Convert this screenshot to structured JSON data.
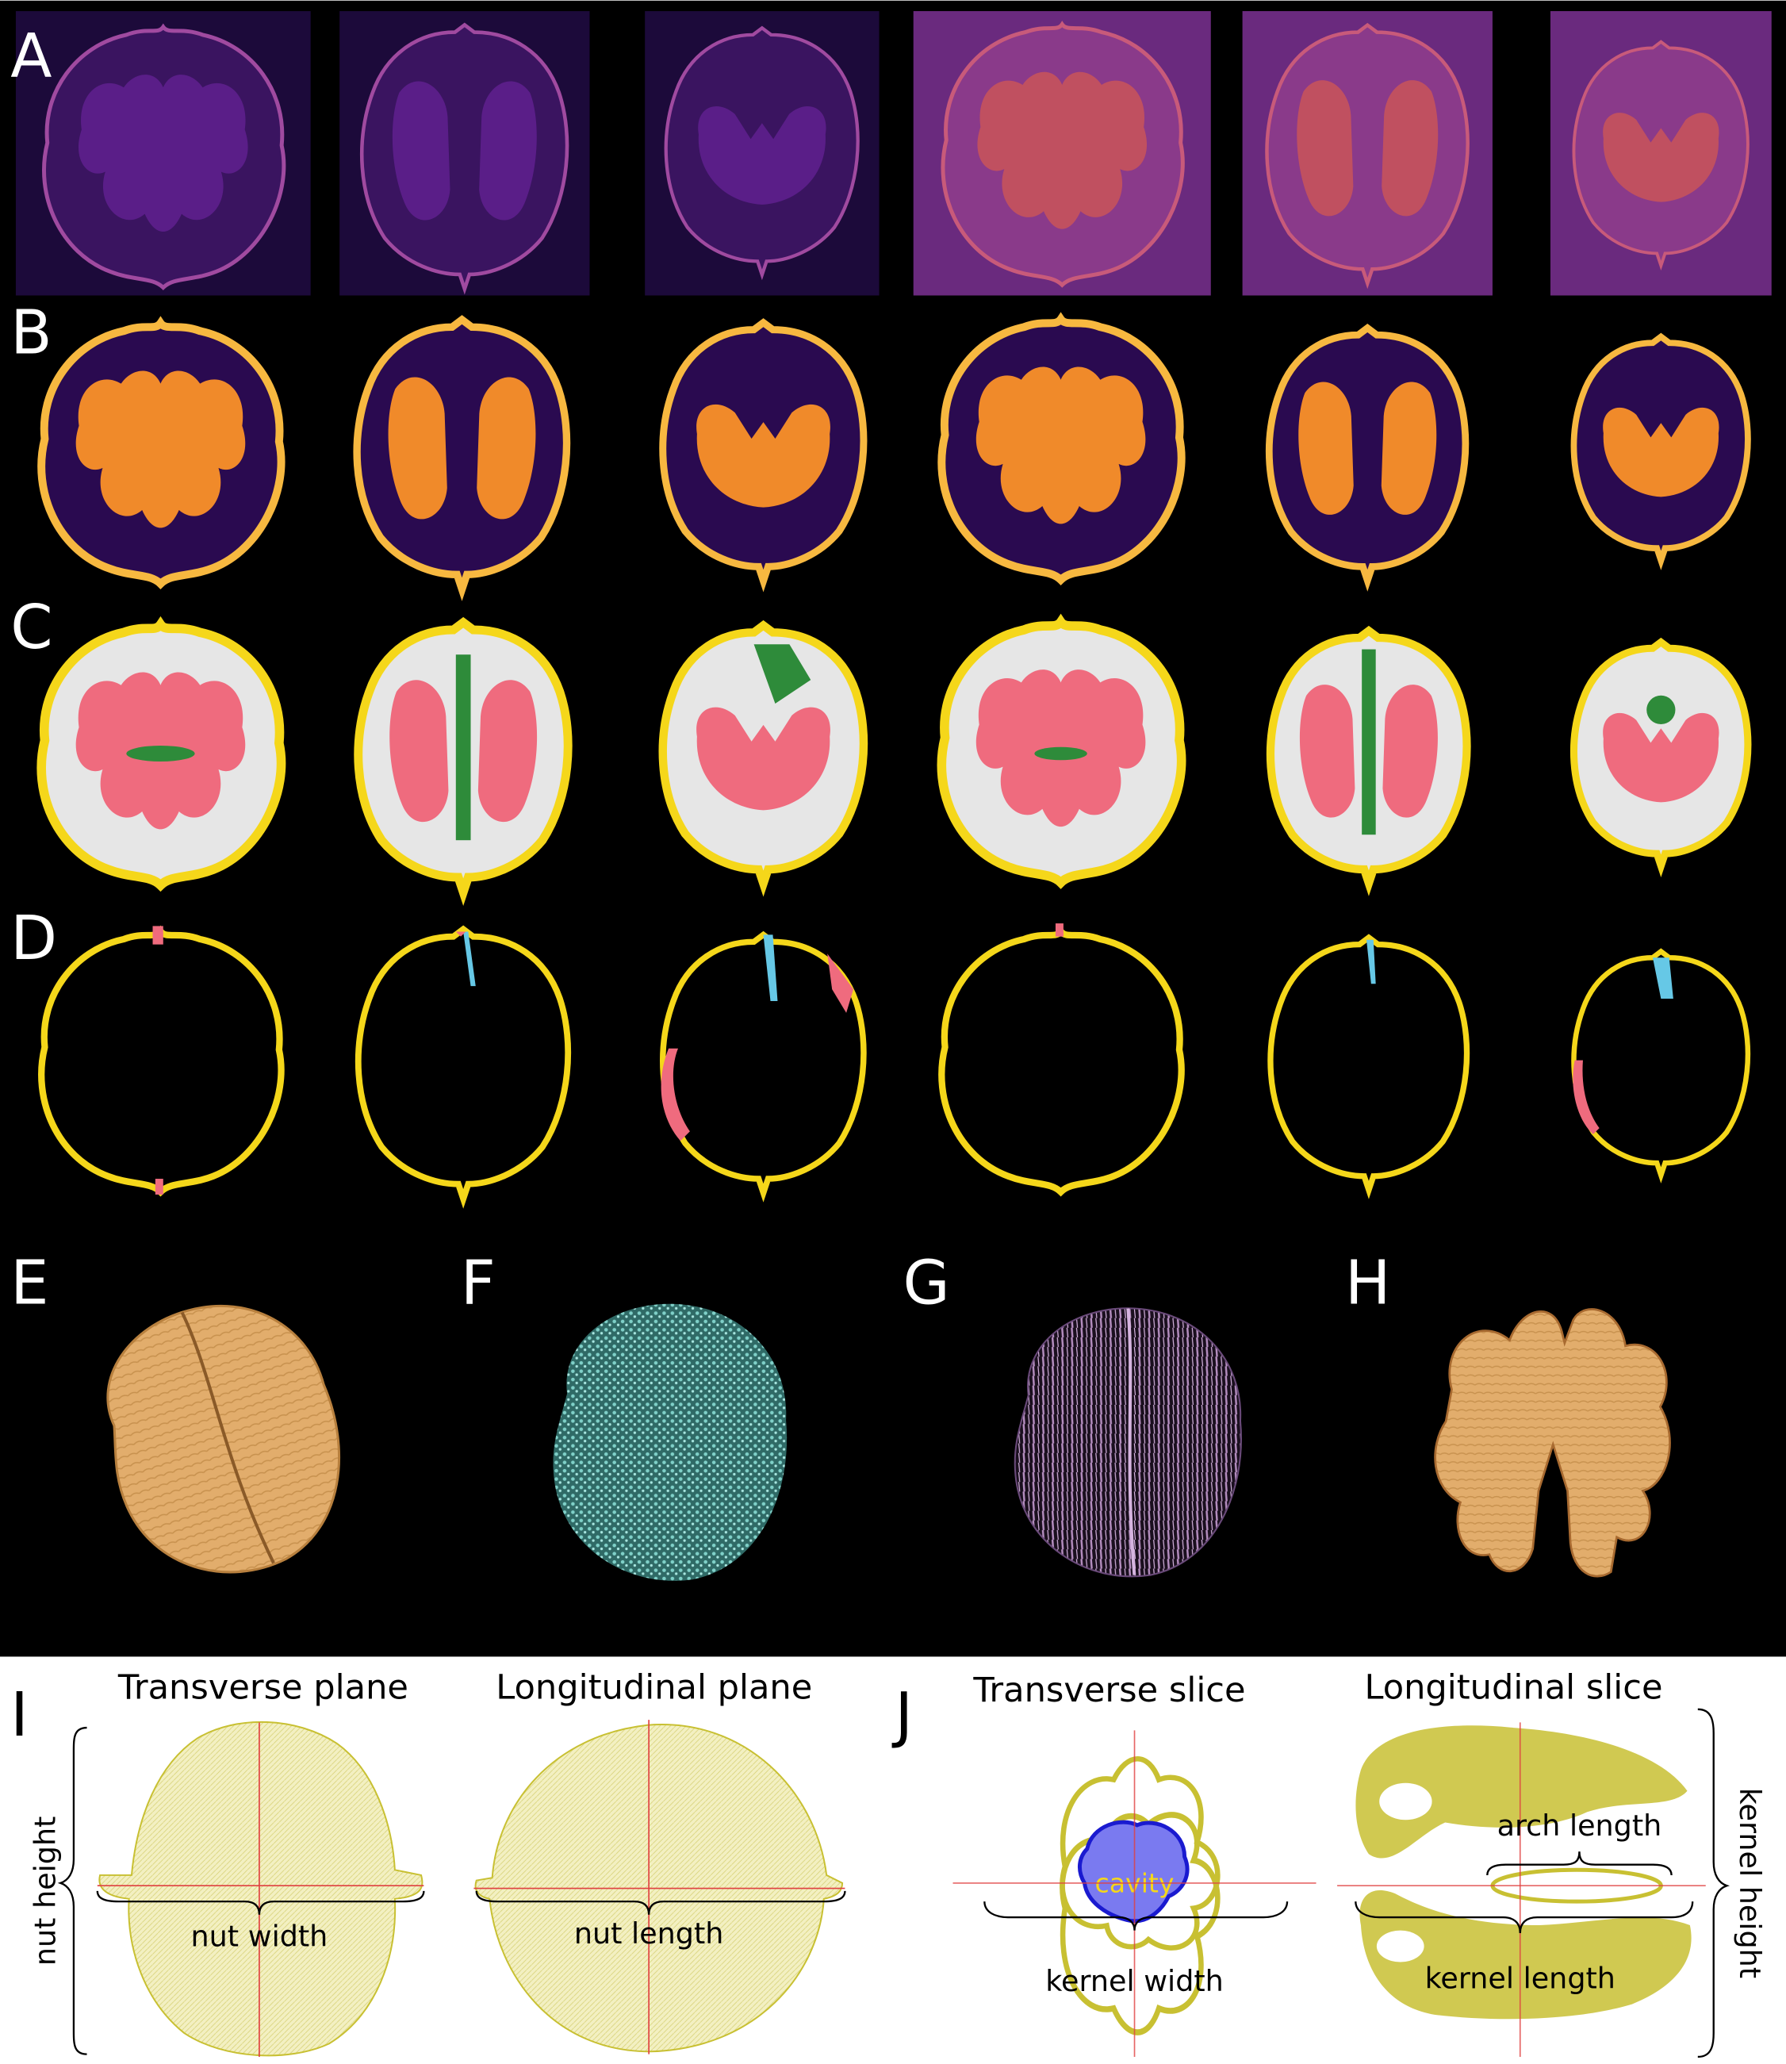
{
  "panels": {
    "A": "A",
    "B": "B",
    "C": "C",
    "D": "D",
    "E": "E",
    "F": "F",
    "G": "G",
    "H": "H",
    "I": "I",
    "J": "J"
  },
  "panel_I": {
    "transverse_title": "Transverse plane",
    "longitudinal_title": "Longitudinal plane",
    "nut_height": "nut height",
    "nut_width": "nut width",
    "nut_length": "nut length"
  },
  "panel_J": {
    "transverse_title": "Transverse slice",
    "longitudinal_title": "Longitudinal slice",
    "cavity": "cavity",
    "kernel_width": "kernel width",
    "arch_length": "arch length",
    "kernel_length": "kernel length",
    "kernel_height": "kernel height"
  },
  "colors": {
    "background": "#000000",
    "raw_purple": "#5a1e78",
    "raw_dark": "#1c0a3a",
    "heat_orange": "#f08a2a",
    "heat_dark": "#2a0a50",
    "shell_yellow": "#f5d71a",
    "kernel_pink": "#ef6b7e",
    "tissue_green": "#2e8b3a",
    "air_grey": "#e6e6e6",
    "crack_blue": "#66c8e6",
    "nut_tan": "#e6b070",
    "teal": "#5fb8b0",
    "lilac": "#b890c0",
    "outline_olive": "#c8c032",
    "cavity_blue": "#7a7af0",
    "cavity_edge": "#1a1ad0",
    "crosshair_red": "#e04040"
  }
}
